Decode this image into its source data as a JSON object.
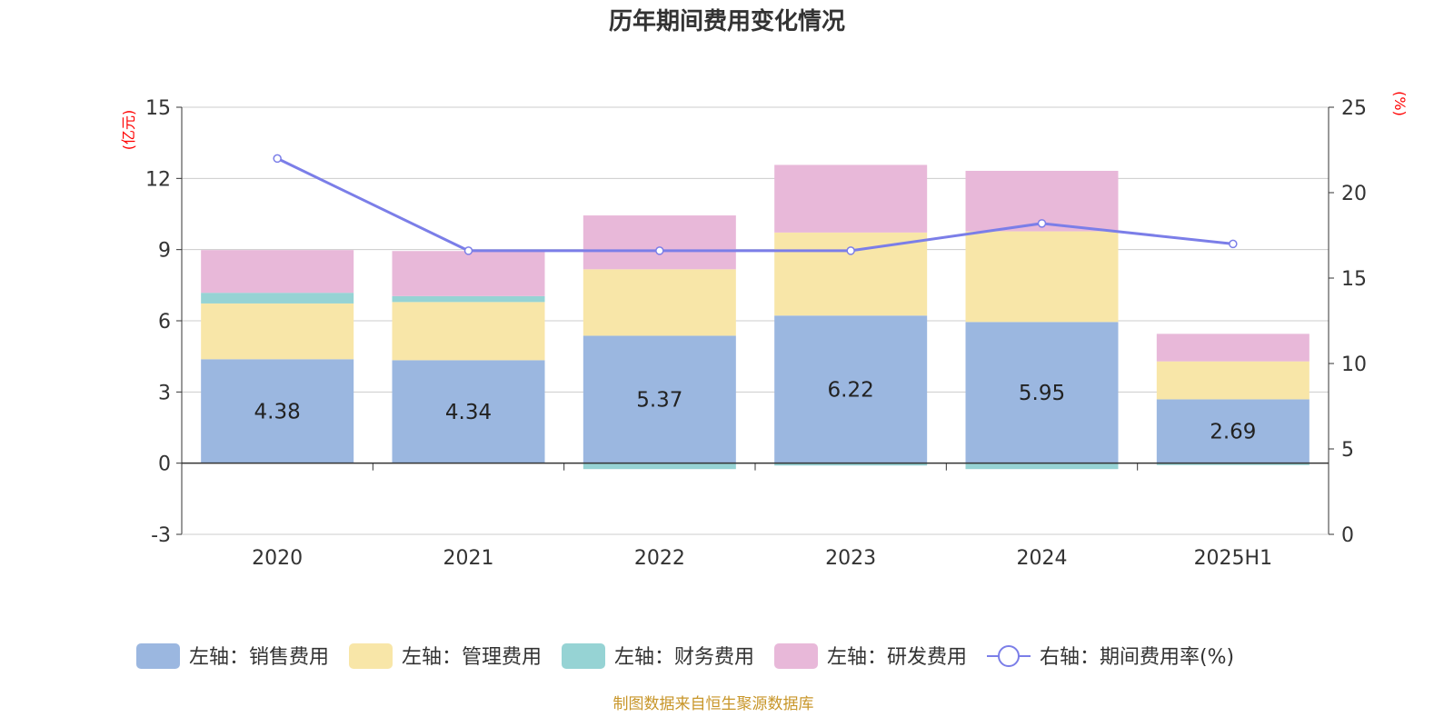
{
  "chart_data": {
    "type": "bar",
    "title": "历年期间费用变化情况",
    "categories": [
      "2020",
      "2021",
      "2022",
      "2023",
      "2024",
      "2025H1"
    ],
    "left_axis": {
      "unit": "(亿元)",
      "ylim": [
        -3,
        15
      ],
      "ticks": [
        -3,
        0,
        3,
        6,
        9,
        12,
        15
      ]
    },
    "right_axis": {
      "unit": "(%)",
      "ylim": [
        0,
        25
      ],
      "ticks": [
        0,
        5,
        10,
        15,
        20,
        25
      ]
    },
    "series": [
      {
        "name": "左轴：销售费用",
        "type": "bar",
        "axis": "left",
        "color": "#9bb7e0",
        "values": [
          4.38,
          4.34,
          5.37,
          6.22,
          5.95,
          2.69
        ],
        "show_labels": true
      },
      {
        "name": "左轴：管理费用",
        "type": "bar",
        "axis": "left",
        "color": "#f8e6a8",
        "values": [
          2.35,
          2.45,
          2.8,
          3.5,
          3.82,
          1.6
        ]
      },
      {
        "name": "左轴：财务费用",
        "type": "bar",
        "axis": "left",
        "color": "#96d3d4",
        "values": [
          0.45,
          0.25,
          -0.25,
          -0.1,
          -0.25,
          -0.08
        ]
      },
      {
        "name": "左轴：研发费用",
        "type": "bar",
        "axis": "left",
        "color": "#e8b8d9",
        "values": [
          1.8,
          1.9,
          2.27,
          2.85,
          2.55,
          1.16
        ]
      },
      {
        "name": "右轴：期间费用率(%)",
        "type": "line",
        "axis": "right",
        "color": "#7b7ee8",
        "values": [
          22.0,
          16.6,
          16.6,
          16.6,
          18.2,
          17.0
        ]
      }
    ],
    "grid": true,
    "legend_position": "bottom"
  },
  "source_text": "制图数据来自恒生聚源数据库"
}
